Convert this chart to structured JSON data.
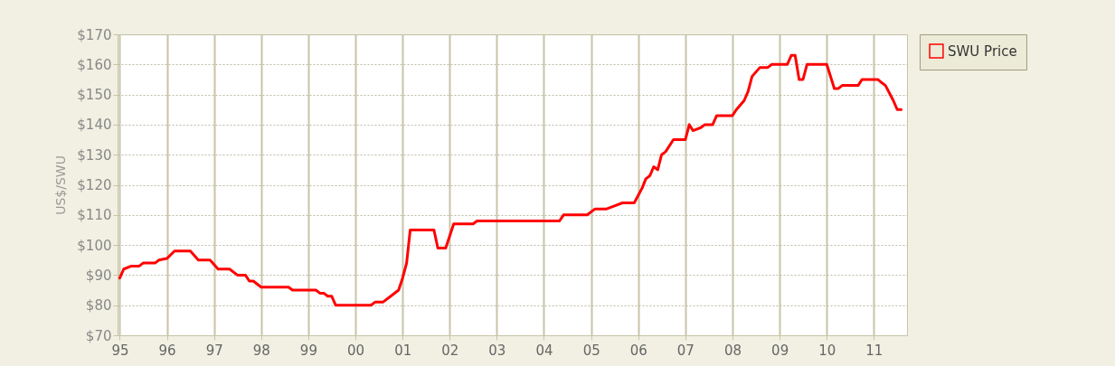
{
  "chart_data": {
    "type": "line",
    "ylabel": "US$/SWU",
    "legend": "right",
    "grid": true,
    "marker": "none",
    "line_style": "solid",
    "xlim": [
      "1994-12-15",
      "2011-09-15"
    ],
    "xticks": [
      {
        "value": "1995",
        "label": "95"
      },
      {
        "value": "1996",
        "label": "96"
      },
      {
        "value": "1997",
        "label": "97"
      },
      {
        "value": "1998",
        "label": "98"
      },
      {
        "value": "1999",
        "label": "99"
      },
      {
        "value": "2000",
        "label": "00"
      },
      {
        "value": "2001",
        "label": "01"
      },
      {
        "value": "2002",
        "label": "02"
      },
      {
        "value": "2003",
        "label": "03"
      },
      {
        "value": "2004",
        "label": "04"
      },
      {
        "value": "2005",
        "label": "05"
      },
      {
        "value": "2006",
        "label": "06"
      },
      {
        "value": "2007",
        "label": "07"
      },
      {
        "value": "2008",
        "label": "08"
      },
      {
        "value": "2009",
        "label": "09"
      },
      {
        "value": "2010",
        "label": "10"
      },
      {
        "value": "2011",
        "label": "11"
      }
    ],
    "ylim": [
      70,
      170
    ],
    "yticks": [
      {
        "value": 70,
        "label": "$70"
      },
      {
        "value": 80,
        "label": "$80"
      },
      {
        "value": 90,
        "label": "$90"
      },
      {
        "value": 100,
        "label": "$100"
      },
      {
        "value": 110,
        "label": "$110"
      },
      {
        "value": 120,
        "label": "$120"
      },
      {
        "value": 130,
        "label": "$130"
      },
      {
        "value": 140,
        "label": "$140"
      },
      {
        "value": 150,
        "label": "$150"
      },
      {
        "value": 160,
        "label": "$160"
      },
      {
        "value": 170,
        "label": "$170"
      }
    ],
    "series": [
      {
        "name": "SWU Price",
        "color": "#ff0000",
        "x": [
          "1995-01",
          "1995-02",
          "1995-04",
          "1995-06",
          "1995-07",
          "1995-10",
          "1995-11",
          "1996-01",
          "1996-03",
          "1996-07",
          "1996-09",
          "1996-12",
          "1997-02",
          "1997-05",
          "1997-07",
          "1997-09",
          "1997-10",
          "1997-11",
          "1998-01",
          "1998-08",
          "1998-09",
          "1999-03",
          "1999-04",
          "1999-05",
          "1999-06",
          "1999-07",
          "1999-08",
          "2000-05",
          "2000-06",
          "2000-08",
          "2000-10",
          "2000-12",
          "2001-01",
          "2001-02",
          "2001-03",
          "2001-09",
          "2001-10",
          "2001-12",
          "2002-02",
          "2002-07",
          "2002-08",
          "2004-05",
          "2004-06",
          "2004-12",
          "2005-02",
          "2005-05",
          "2005-07",
          "2005-09",
          "2005-12",
          "2006-02",
          "2006-03",
          "2006-04",
          "2006-05",
          "2006-06",
          "2006-07",
          "2006-08",
          "2006-10",
          "2006-11",
          "2007-01",
          "2007-02",
          "2007-03",
          "2007-05",
          "2007-06",
          "2007-08",
          "2007-09",
          "2008-01",
          "2008-02",
          "2008-04",
          "2008-05",
          "2008-06",
          "2008-08",
          "2008-10",
          "2008-11",
          "2009-03",
          "2009-04",
          "2009-05",
          "2009-06",
          "2009-07",
          "2009-08",
          "2010-01",
          "2010-03",
          "2010-04",
          "2010-05",
          "2010-09",
          "2010-10",
          "2011-02",
          "2011-03",
          "2011-04",
          "2011-06",
          "2011-07",
          "2011-08"
        ],
        "values": [
          89,
          92,
          93,
          93,
          94,
          94,
          95,
          95.5,
          98,
          98,
          95,
          95,
          92,
          92,
          90,
          90,
          88,
          88,
          86,
          86,
          85,
          85,
          84,
          84,
          83,
          83,
          80,
          80,
          81,
          81,
          83,
          85,
          89,
          94,
          105,
          105,
          99,
          99,
          107,
          107,
          108,
          108,
          110,
          110,
          112,
          112,
          113,
          114,
          114,
          119,
          122,
          123,
          126,
          125,
          130,
          131,
          135,
          135,
          135,
          140,
          138,
          139,
          140,
          140,
          143,
          143,
          145,
          148,
          151,
          156,
          159,
          159,
          160,
          160,
          163,
          163,
          155,
          155,
          160,
          160,
          152,
          152,
          153,
          153,
          155,
          155,
          154,
          153,
          148,
          145,
          145
        ]
      }
    ]
  }
}
